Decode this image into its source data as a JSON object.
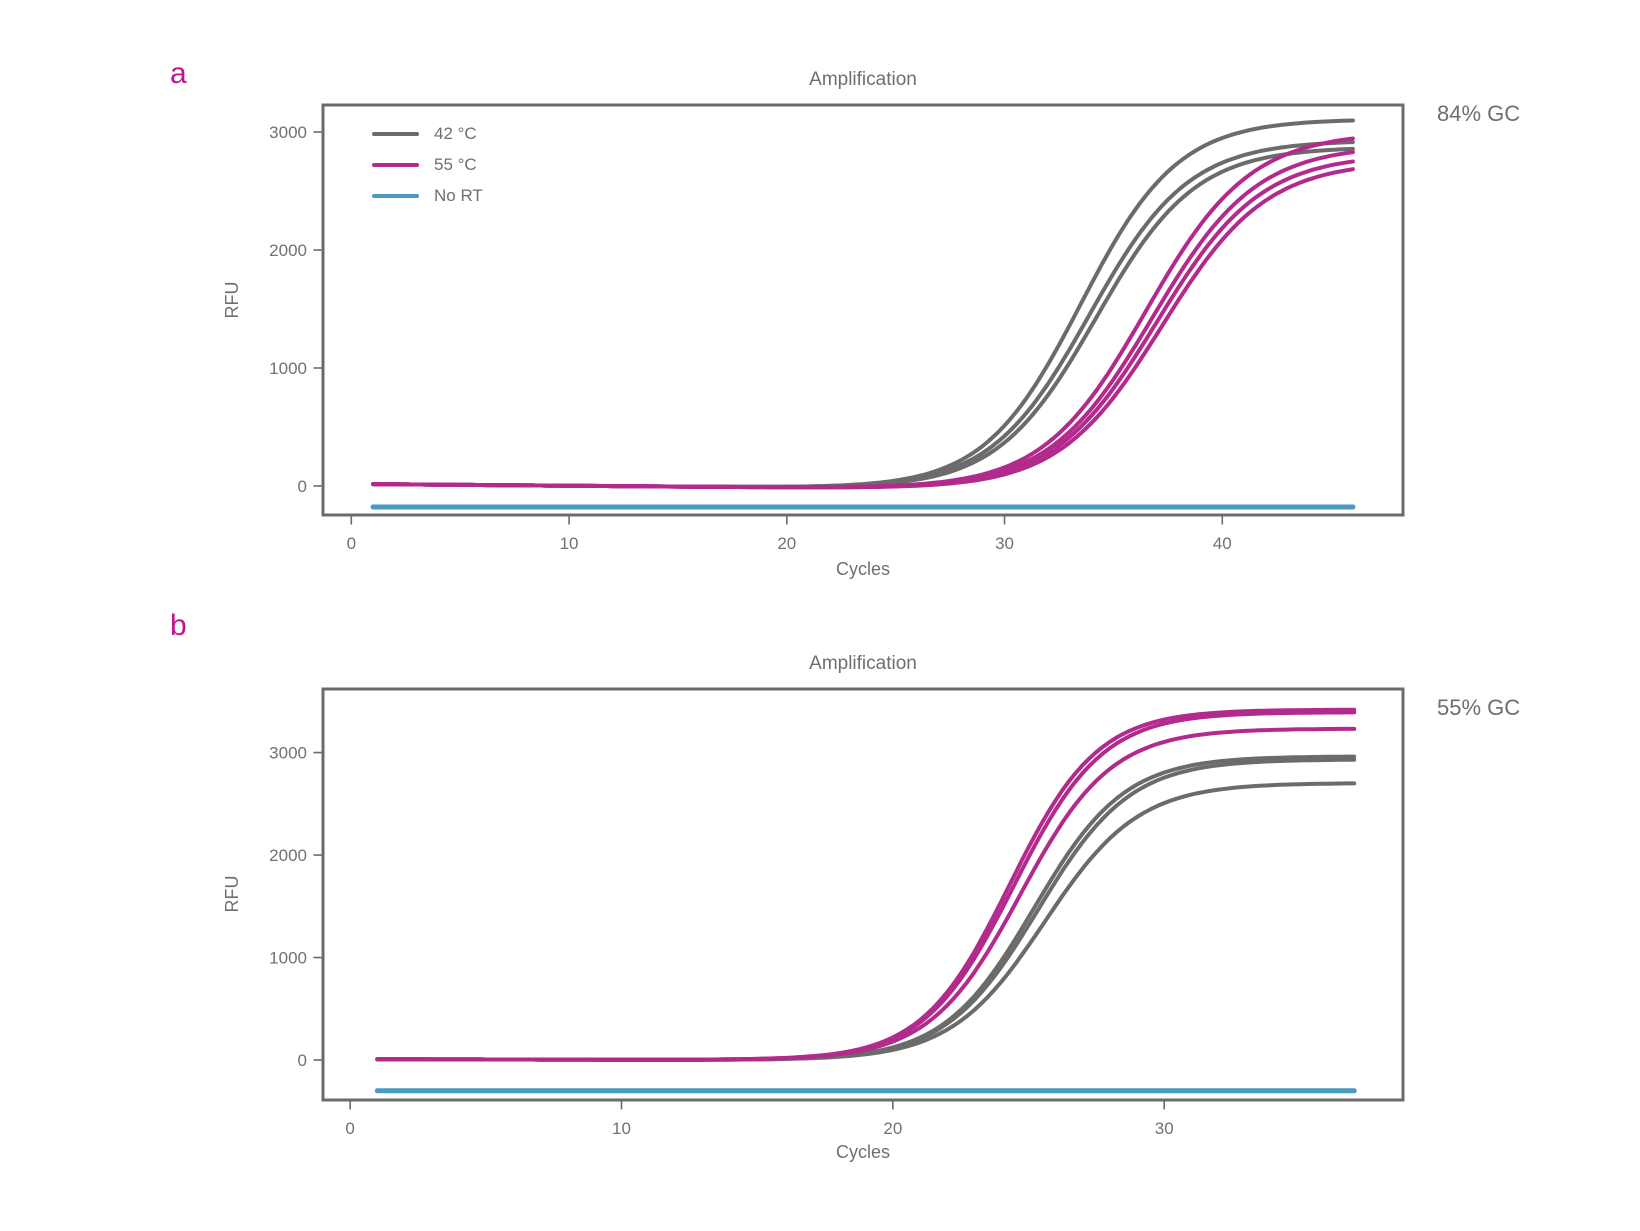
{
  "figure": {
    "background": "#ffffff",
    "text_color": "#6f6f6f",
    "panel_label_color": "#c0158c",
    "axis_color": "#6b6b6b"
  },
  "legend": {
    "position": "upper left",
    "items": [
      {
        "label": "42 °C",
        "color": "#6b6b6b"
      },
      {
        "label": "55 °C",
        "color": "#b32a8d"
      },
      {
        "label": "No RT",
        "color": "#4a9ac2"
      }
    ]
  },
  "chart_data": [
    {
      "type": "line",
      "panel_label": "a",
      "title": "Amplification",
      "annotation": "84% GC",
      "xlabel": "Cycles",
      "ylabel": "RFU",
      "grid": false,
      "legend_shown": true,
      "xlim": [
        -1.3,
        48.3
      ],
      "ylim": [
        -246,
        3229
      ],
      "xticks": [
        0,
        10,
        20,
        30,
        40
      ],
      "yticks": [
        0,
        1000,
        2000,
        3000
      ],
      "x_start": 1,
      "x_end": 46,
      "baseline": {
        "b0": 17,
        "b1": -1.5
      },
      "series": [
        {
          "name": "42C-rep1",
          "group": "42 °C",
          "kind": "sigmoid",
          "color": "#6b6b6b",
          "width": 4,
          "plateau": 3135,
          "midpoint": 33.5,
          "slope": 0.45
        },
        {
          "name": "42C-rep2",
          "group": "42 °C",
          "kind": "sigmoid",
          "color": "#6b6b6b",
          "width": 4,
          "plateau": 2955,
          "midpoint": 33.9,
          "slope": 0.44
        },
        {
          "name": "42C-rep3",
          "group": "42 °C",
          "kind": "sigmoid",
          "color": "#6b6b6b",
          "width": 4,
          "plateau": 2900,
          "midpoint": 34.2,
          "slope": 0.44
        },
        {
          "name": "55C-rep1",
          "group": "55 °C",
          "kind": "sigmoid",
          "color": "#b32a8d",
          "width": 4,
          "plateau": 3030,
          "midpoint": 36.5,
          "slope": 0.42
        },
        {
          "name": "55C-rep2",
          "group": "55 °C",
          "kind": "sigmoid",
          "color": "#b32a8d",
          "width": 4,
          "plateau": 2920,
          "midpoint": 36.8,
          "slope": 0.42
        },
        {
          "name": "55C-rep3",
          "group": "55 °C",
          "kind": "sigmoid",
          "color": "#b32a8d",
          "width": 4,
          "plateau": 2845,
          "midpoint": 37.0,
          "slope": 0.42
        },
        {
          "name": "55C-rep4",
          "group": "55 °C",
          "kind": "sigmoid",
          "color": "#b32a8d",
          "width": 4,
          "plateau": 2785,
          "midpoint": 37.25,
          "slope": 0.42
        },
        {
          "name": "NoRT",
          "group": "No RT",
          "kind": "flat",
          "color": "#4a9ac2",
          "width": 5,
          "value": -178
        }
      ]
    },
    {
      "type": "line",
      "panel_label": "b",
      "title": "Amplification",
      "annotation": "55% GC",
      "xlabel": "Cycles",
      "ylabel": "RFU",
      "grid": false,
      "legend_shown": false,
      "xlim": [
        -1.0,
        38.8
      ],
      "ylim": [
        -390,
        3620
      ],
      "xticks": [
        0,
        10,
        20,
        30
      ],
      "yticks": [
        0,
        1000,
        2000,
        3000
      ],
      "x_start": 1,
      "x_end": 37,
      "baseline": {
        "b0": 8,
        "b1": -0.5
      },
      "series": [
        {
          "name": "42C-rep1",
          "group": "42 °C",
          "kind": "sigmoid",
          "color": "#6b6b6b",
          "width": 4,
          "plateau": 2965,
          "midpoint": 25.2,
          "slope": 0.6
        },
        {
          "name": "42C-rep2",
          "group": "42 °C",
          "kind": "sigmoid",
          "color": "#6b6b6b",
          "width": 4,
          "plateau": 2935,
          "midpoint": 25.35,
          "slope": 0.59
        },
        {
          "name": "42C-rep3",
          "group": "42 °C",
          "kind": "sigmoid",
          "color": "#6b6b6b",
          "width": 4,
          "plateau": 2705,
          "midpoint": 25.6,
          "slope": 0.58
        },
        {
          "name": "55C-rep1",
          "group": "55 °C",
          "kind": "sigmoid",
          "color": "#b32a8d",
          "width": 4,
          "plateau": 3420,
          "midpoint": 24.3,
          "slope": 0.62
        },
        {
          "name": "55C-rep2",
          "group": "55 °C",
          "kind": "sigmoid",
          "color": "#b32a8d",
          "width": 4,
          "plateau": 3395,
          "midpoint": 24.45,
          "slope": 0.61
        },
        {
          "name": "55C-rep3",
          "group": "55 °C",
          "kind": "sigmoid",
          "color": "#b32a8d",
          "width": 4,
          "plateau": 3235,
          "midpoint": 24.7,
          "slope": 0.6
        },
        {
          "name": "NoRT",
          "group": "No RT",
          "kind": "flat",
          "color": "#4a9ac2",
          "width": 5,
          "value": -300
        }
      ]
    }
  ]
}
